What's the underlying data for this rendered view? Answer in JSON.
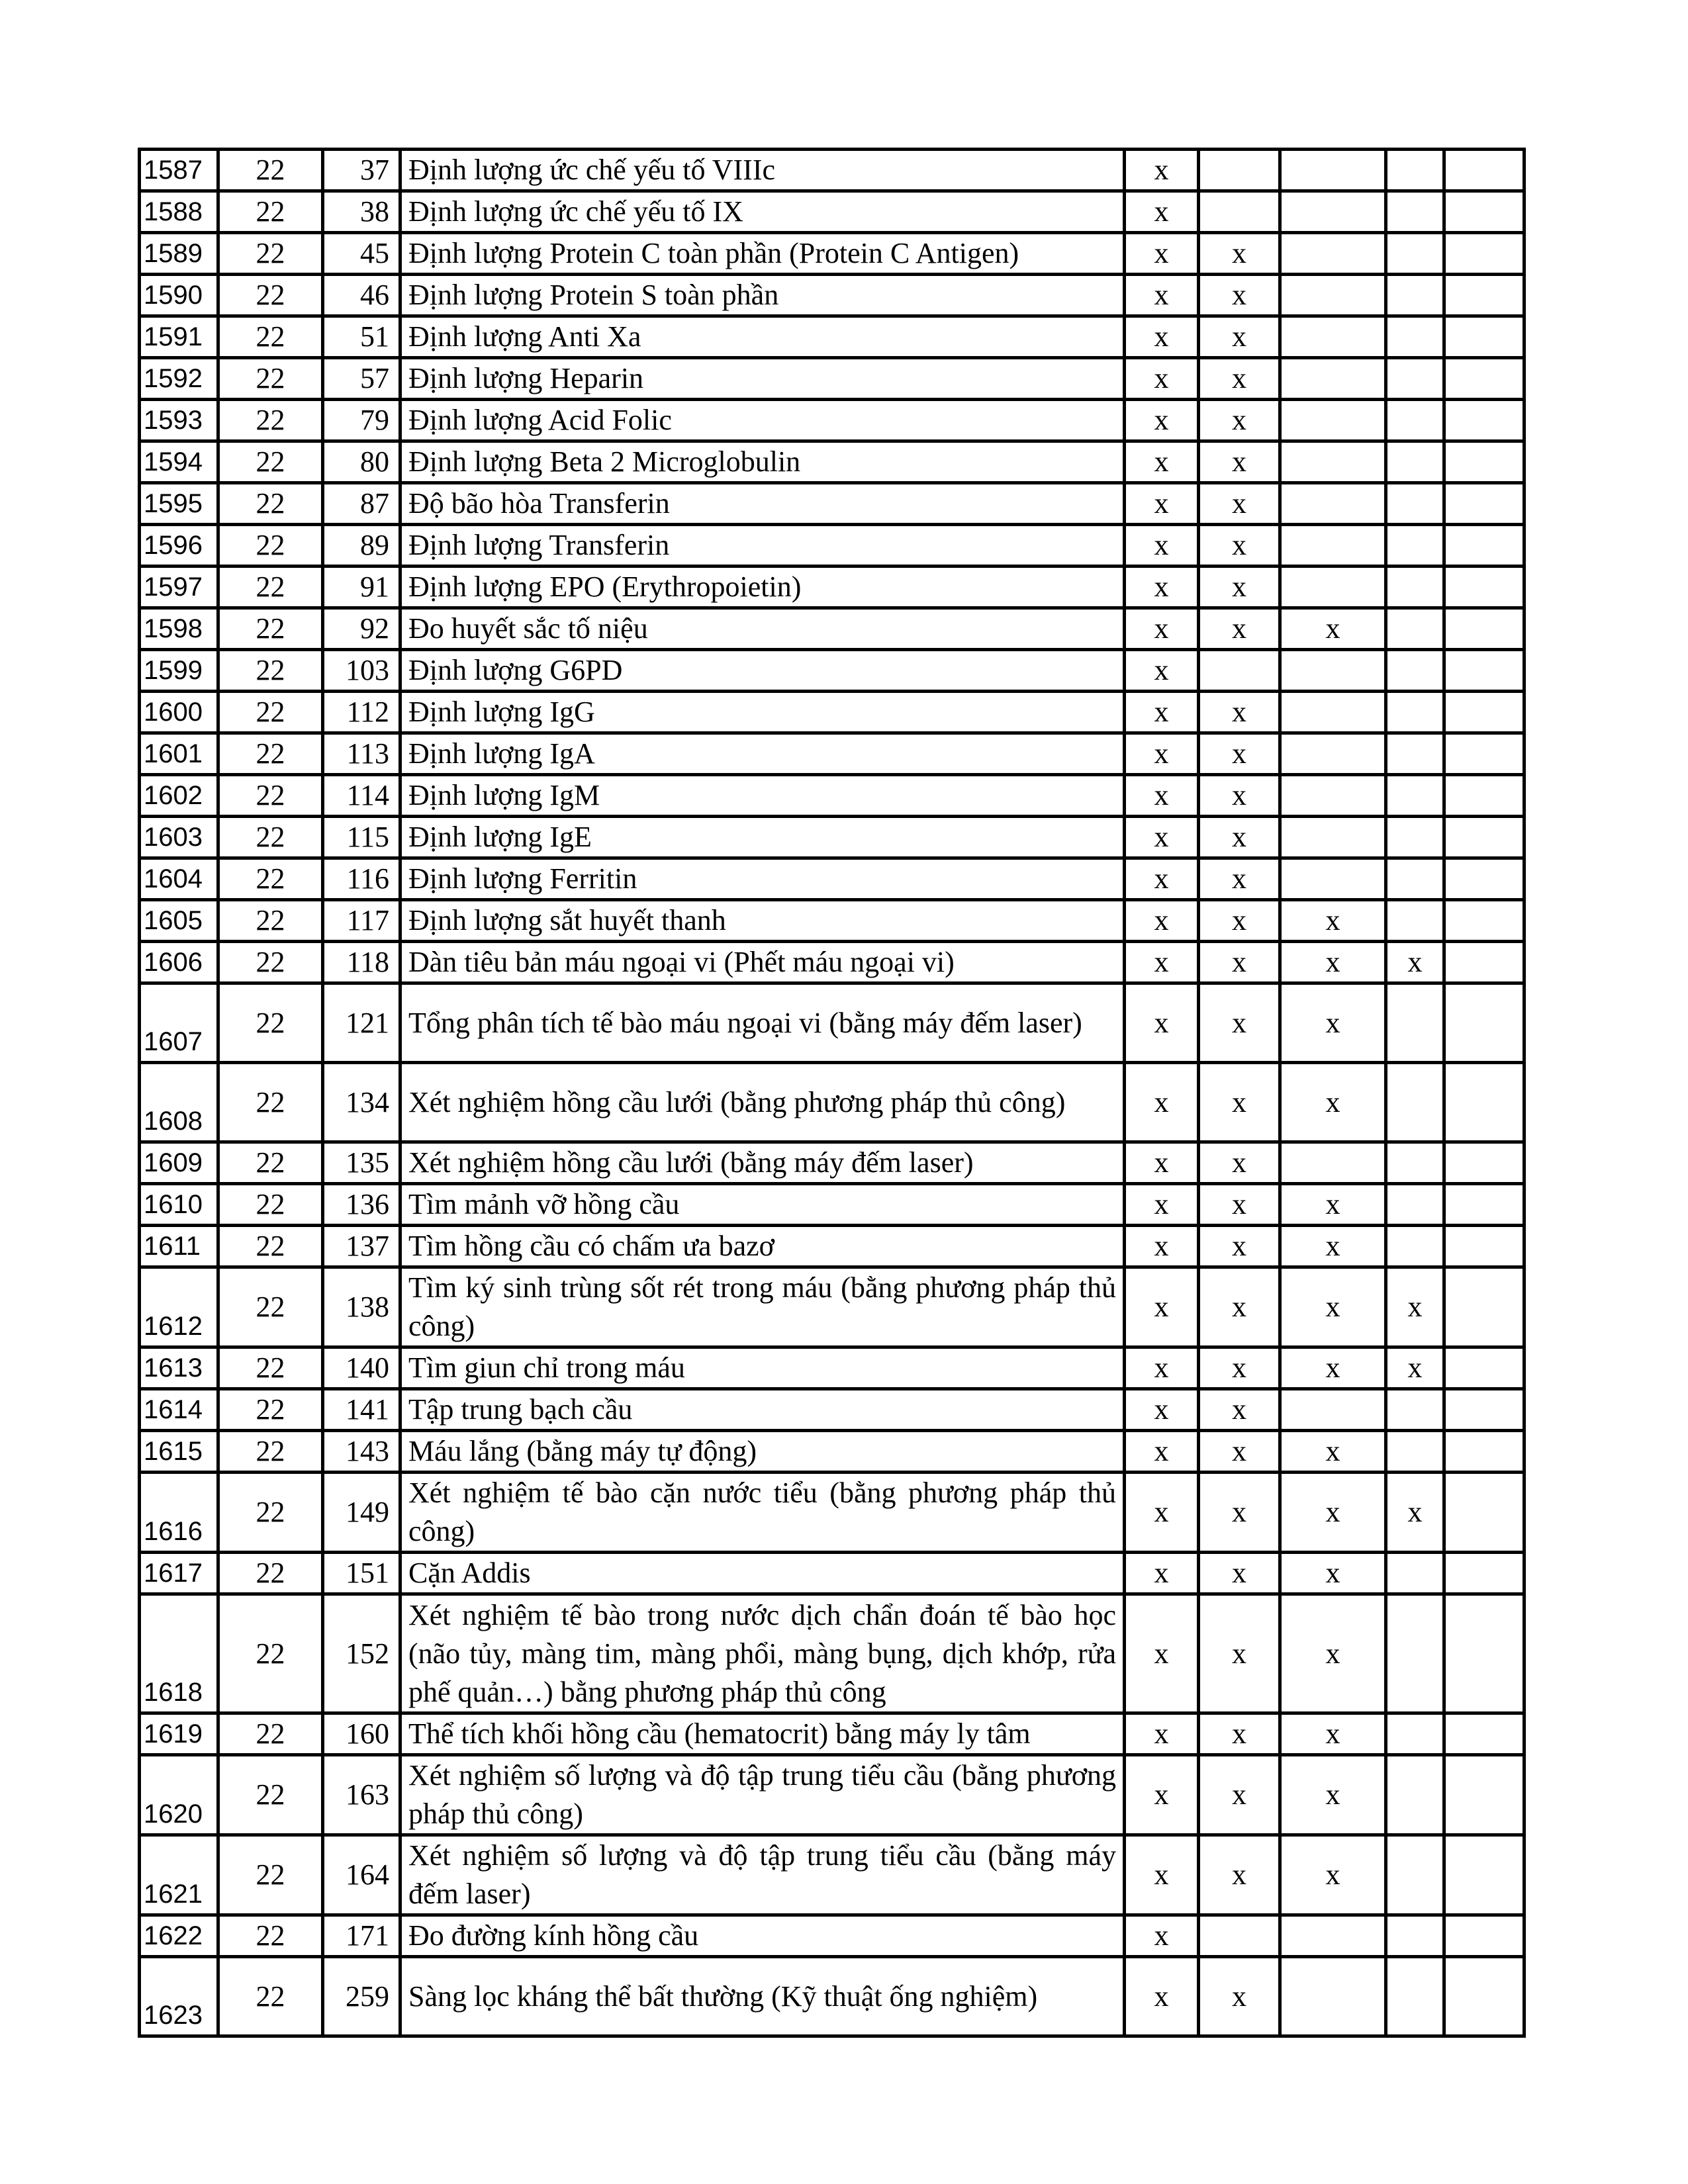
{
  "rows": [
    {
      "stt": "1587",
      "c2": "22",
      "c3": "37",
      "name": "Định lượng ức chế yếu tố VIIIc",
      "m": [
        "x",
        "",
        "",
        "",
        ""
      ],
      "u": 1
    },
    {
      "stt": "1588",
      "c2": "22",
      "c3": "38",
      "name": "Định lượng ức chế yếu tố IX",
      "m": [
        "x",
        "",
        "",
        "",
        ""
      ],
      "u": 1
    },
    {
      "stt": "1589",
      "c2": "22",
      "c3": "45",
      "name": "Định lượng Protein C toàn phần (Protein C Antigen)",
      "m": [
        "x",
        "x",
        "",
        "",
        ""
      ],
      "u": 1
    },
    {
      "stt": "1590",
      "c2": "22",
      "c3": "46",
      "name": "Định lượng Protein S toàn phần",
      "m": [
        "x",
        "x",
        "",
        "",
        ""
      ],
      "u": 1
    },
    {
      "stt": "1591",
      "c2": "22",
      "c3": "51",
      "name": "Định lượng Anti Xa",
      "m": [
        "x",
        "x",
        "",
        "",
        ""
      ],
      "u": 1
    },
    {
      "stt": "1592",
      "c2": "22",
      "c3": "57",
      "name": "Định lượng Heparin",
      "m": [
        "x",
        "x",
        "",
        "",
        ""
      ],
      "u": 1
    },
    {
      "stt": "1593",
      "c2": "22",
      "c3": "79",
      "name": "Định lượng Acid  Folic",
      "m": [
        "x",
        "x",
        "",
        "",
        ""
      ],
      "u": 1
    },
    {
      "stt": "1594",
      "c2": "22",
      "c3": "80",
      "name": "Định lượng Beta 2 Microglobulin",
      "m": [
        "x",
        "x",
        "",
        "",
        ""
      ],
      "u": 1
    },
    {
      "stt": "1595",
      "c2": "22",
      "c3": "87",
      "name": "Độ bão hòa Transferin",
      "m": [
        "x",
        "x",
        "",
        "",
        ""
      ],
      "u": 1
    },
    {
      "stt": "1596",
      "c2": "22",
      "c3": "89",
      "name": "Định lượng Transferin",
      "m": [
        "x",
        "x",
        "",
        "",
        ""
      ],
      "u": 1
    },
    {
      "stt": "1597",
      "c2": "22",
      "c3": "91",
      "name": "Định lượng EPO (Erythropoietin)",
      "m": [
        "x",
        "x",
        "",
        "",
        ""
      ],
      "u": 1
    },
    {
      "stt": "1598",
      "c2": "22",
      "c3": "92",
      "name": "Đo huyết  sắc tố niệu",
      "m": [
        "x",
        "x",
        "x",
        "",
        ""
      ],
      "u": 1
    },
    {
      "stt": "1599",
      "c2": "22",
      "c3": "103",
      "name": "Định lượng G6PD",
      "m": [
        "x",
        "",
        "",
        "",
        ""
      ],
      "u": 1
    },
    {
      "stt": "1600",
      "c2": "22",
      "c3": "112",
      "name": "Định lượng IgG",
      "m": [
        "x",
        "x",
        "",
        "",
        ""
      ],
      "u": 1
    },
    {
      "stt": "1601",
      "c2": "22",
      "c3": "113",
      "name": "Định lượng IgA",
      "m": [
        "x",
        "x",
        "",
        "",
        ""
      ],
      "u": 1
    },
    {
      "stt": "1602",
      "c2": "22",
      "c3": "114",
      "name": "Định lượng IgM",
      "m": [
        "x",
        "x",
        "",
        "",
        ""
      ],
      "u": 1
    },
    {
      "stt": "1603",
      "c2": "22",
      "c3": "115",
      "name": "Định lượng IgE",
      "m": [
        "x",
        "x",
        "",
        "",
        ""
      ],
      "u": 1
    },
    {
      "stt": "1604",
      "c2": "22",
      "c3": "116",
      "name": "Định lượng Ferritin",
      "m": [
        "x",
        "x",
        "",
        "",
        ""
      ],
      "u": 1
    },
    {
      "stt": "1605",
      "c2": "22",
      "c3": "117",
      "name": "Định lượng sắt huyết thanh",
      "m": [
        "x",
        "x",
        "x",
        "",
        ""
      ],
      "u": 1
    },
    {
      "stt": "1606",
      "c2": "22",
      "c3": "118",
      "name": "Dàn tiêu bản máu ngoại vi (Phết máu ngoại vi)",
      "m": [
        "x",
        "x",
        "x",
        "x",
        ""
      ],
      "u": 1
    },
    {
      "stt": "1607",
      "c2": "22",
      "c3": "121",
      "name": "Tổng phân tích tế bào máu ngoại vi (bằng máy đếm laser)",
      "m": [
        "x",
        "x",
        "x",
        "",
        ""
      ],
      "u": 2
    },
    {
      "stt": "1608",
      "c2": "22",
      "c3": "134",
      "name": "Xét nghiệm hồng cầu lưới (bằng phương pháp thủ công)",
      "m": [
        "x",
        "x",
        "x",
        "",
        ""
      ],
      "u": 2
    },
    {
      "stt": "1609",
      "c2": "22",
      "c3": "135",
      "name": "Xét nghiệm hồng cầu lưới (bằng máy đếm laser)",
      "m": [
        "x",
        "x",
        "",
        "",
        ""
      ],
      "u": 1
    },
    {
      "stt": "1610",
      "c2": "22",
      "c3": "136",
      "name": "Tìm mảnh vỡ hồng cầu",
      "m": [
        "x",
        "x",
        "x",
        "",
        ""
      ],
      "u": 1
    },
    {
      "stt": "1611",
      "c2": "22",
      "c3": "137",
      "name": "Tìm hồng cầu có chấm ưa bazơ",
      "m": [
        "x",
        "x",
        "x",
        "",
        ""
      ],
      "u": 1
    },
    {
      "stt": "1612",
      "c2": "22",
      "c3": "138",
      "name": "Tìm ký sinh trùng sốt rét trong máu (bằng phương pháp thủ công)",
      "m": [
        "x",
        "x",
        "x",
        "x",
        ""
      ],
      "u": 2
    },
    {
      "stt": "1613",
      "c2": "22",
      "c3": "140",
      "name": "Tìm giun chỉ trong máu",
      "m": [
        "x",
        "x",
        "x",
        "x",
        ""
      ],
      "u": 1
    },
    {
      "stt": "1614",
      "c2": "22",
      "c3": "141",
      "name": "Tập trung bạch cầu",
      "m": [
        "x",
        "x",
        "",
        "",
        ""
      ],
      "u": 1
    },
    {
      "stt": "1615",
      "c2": "22",
      "c3": "143",
      "name": "Máu lắng (bằng máy tự động)",
      "m": [
        "x",
        "x",
        "x",
        "",
        ""
      ],
      "u": 1
    },
    {
      "stt": "1616",
      "c2": "22",
      "c3": "149",
      "name": "Xét nghiệm tế bào cặn nước tiểu (bằng phương pháp thủ công)",
      "m": [
        "x",
        "x",
        "x",
        "x",
        ""
      ],
      "u": 2
    },
    {
      "stt": "1617",
      "c2": "22",
      "c3": "151",
      "name": "Cặn Addis",
      "m": [
        "x",
        "x",
        "x",
        "",
        ""
      ],
      "u": 1
    },
    {
      "stt": "1618",
      "c2": "22",
      "c3": "152",
      "name": "Xét nghiệm tế bào trong nước dịch chẩn đoán tế bào học (não tủy, màng tim, màng phổi, màng bụng, dịch khớp, rửa phế quản…) bằng phương pháp thủ công",
      "m": [
        "x",
        "x",
        "x",
        "",
        ""
      ],
      "u": 3
    },
    {
      "stt": "1619",
      "c2": "22",
      "c3": "160",
      "name": "Thể tích khối hồng cầu (hematocrit) bằng máy ly tâm",
      "m": [
        "x",
        "x",
        "x",
        "",
        ""
      ],
      "u": 1
    },
    {
      "stt": "1620",
      "c2": "22",
      "c3": "163",
      "name": "Xét nghiệm số lượng và độ tập trung tiểu cầu (bằng phương pháp thủ công)",
      "m": [
        "x",
        "x",
        "x",
        "",
        ""
      ],
      "u": 2
    },
    {
      "stt": "1621",
      "c2": "22",
      "c3": "164",
      "name": "Xét nghiệm số lượng và độ tập trung tiểu cầu (bằng máy đếm laser)",
      "m": [
        "x",
        "x",
        "x",
        "",
        ""
      ],
      "u": 2
    },
    {
      "stt": "1622",
      "c2": "22",
      "c3": "171",
      "name": "Đo đường kính hồng cầu",
      "m": [
        "x",
        "",
        "",
        "",
        ""
      ],
      "u": 1
    },
    {
      "stt": "1623",
      "c2": "22",
      "c3": "259",
      "name": "Sàng lọc kháng thể bất thường (Kỹ thuật ống nghiệm)",
      "m": [
        "x",
        "x",
        "",
        "",
        ""
      ],
      "u": 2
    }
  ]
}
